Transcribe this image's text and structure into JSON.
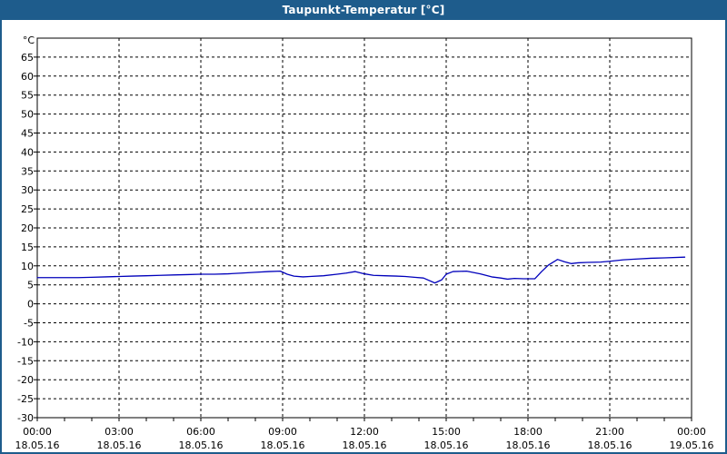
{
  "window": {
    "title": "Taupunkt-Temperatur [°C]",
    "title_bar_color": "#1e5c8c",
    "border_color": "#1e5c8c",
    "background_color": "#ffffff"
  },
  "chart_data": {
    "type": "line",
    "title": "Taupunkt-Temperatur [°C]",
    "xlabel": "",
    "ylabel": "°C",
    "grid": "dashed",
    "legend": "none",
    "colors": {
      "line": "#0000bb",
      "grid": "#000000",
      "text": "#000000"
    },
    "y_axis": {
      "min": -30,
      "max": 70,
      "tick_min": -30,
      "tick_max": 65,
      "tick_step": 5
    },
    "x_axis": {
      "range_hours": [
        0,
        24
      ],
      "tick_hours": [
        0,
        3,
        6,
        9,
        12,
        15,
        18,
        21,
        24
      ],
      "tick_labels": [
        "00:00",
        "03:00",
        "06:00",
        "09:00",
        "12:00",
        "15:00",
        "18:00",
        "21:00",
        "00:00"
      ],
      "date_labels": [
        "18.05.16",
        "18.05.16",
        "18.05.16",
        "18.05.16",
        "18.05.16",
        "18.05.16",
        "18.05.16",
        "18.05.16",
        "19.05.16"
      ],
      "grid_hours": [
        3,
        6,
        9,
        12,
        15,
        18,
        21
      ],
      "minor_tick_interval_hours": 1
    },
    "series": [
      {
        "name": "Taupunkt-Temperatur",
        "points": [
          [
            "00:00",
            6.9
          ],
          [
            "00:30",
            6.9
          ],
          [
            "01:00",
            6.9
          ],
          [
            "01:30",
            6.9
          ],
          [
            "02:00",
            7.0
          ],
          [
            "02:30",
            7.1
          ],
          [
            "03:00",
            7.2
          ],
          [
            "03:30",
            7.3
          ],
          [
            "04:00",
            7.4
          ],
          [
            "04:30",
            7.5
          ],
          [
            "05:00",
            7.6
          ],
          [
            "05:30",
            7.7
          ],
          [
            "06:00",
            7.8
          ],
          [
            "06:30",
            7.8
          ],
          [
            "07:00",
            7.9
          ],
          [
            "07:30",
            8.1
          ],
          [
            "08:00",
            8.3
          ],
          [
            "08:30",
            8.5
          ],
          [
            "08:55",
            8.6
          ],
          [
            "09:10",
            7.8
          ],
          [
            "09:25",
            7.3
          ],
          [
            "09:45",
            7.1
          ],
          [
            "10:00",
            7.2
          ],
          [
            "10:30",
            7.4
          ],
          [
            "11:00",
            7.8
          ],
          [
            "11:20",
            8.1
          ],
          [
            "11:40",
            8.5
          ],
          [
            "12:00",
            7.9
          ],
          [
            "12:20",
            7.5
          ],
          [
            "12:45",
            7.4
          ],
          [
            "13:10",
            7.3
          ],
          [
            "13:30",
            7.2
          ],
          [
            "13:50",
            7.0
          ],
          [
            "14:10",
            6.8
          ],
          [
            "14:35",
            5.5
          ],
          [
            "14:50",
            6.3
          ],
          [
            "15:00",
            7.8
          ],
          [
            "15:15",
            8.5
          ],
          [
            "15:45",
            8.6
          ],
          [
            "16:15",
            7.9
          ],
          [
            "16:40",
            7.1
          ],
          [
            "17:00",
            6.8
          ],
          [
            "17:15",
            6.5
          ],
          [
            "17:30",
            6.7
          ],
          [
            "17:50",
            6.6
          ],
          [
            "18:15",
            6.6
          ],
          [
            "18:30",
            8.5
          ],
          [
            "18:45",
            10.2
          ],
          [
            "19:00",
            11.3
          ],
          [
            "19:05",
            11.7
          ],
          [
            "19:20",
            11.1
          ],
          [
            "19:35",
            10.6
          ],
          [
            "19:50",
            10.8
          ],
          [
            "20:10",
            10.9
          ],
          [
            "20:40",
            11.0
          ],
          [
            "21:00",
            11.2
          ],
          [
            "21:30",
            11.6
          ],
          [
            "22:00",
            11.8
          ],
          [
            "22:30",
            12.0
          ],
          [
            "23:00",
            12.1
          ],
          [
            "23:45",
            12.3
          ]
        ]
      }
    ]
  }
}
